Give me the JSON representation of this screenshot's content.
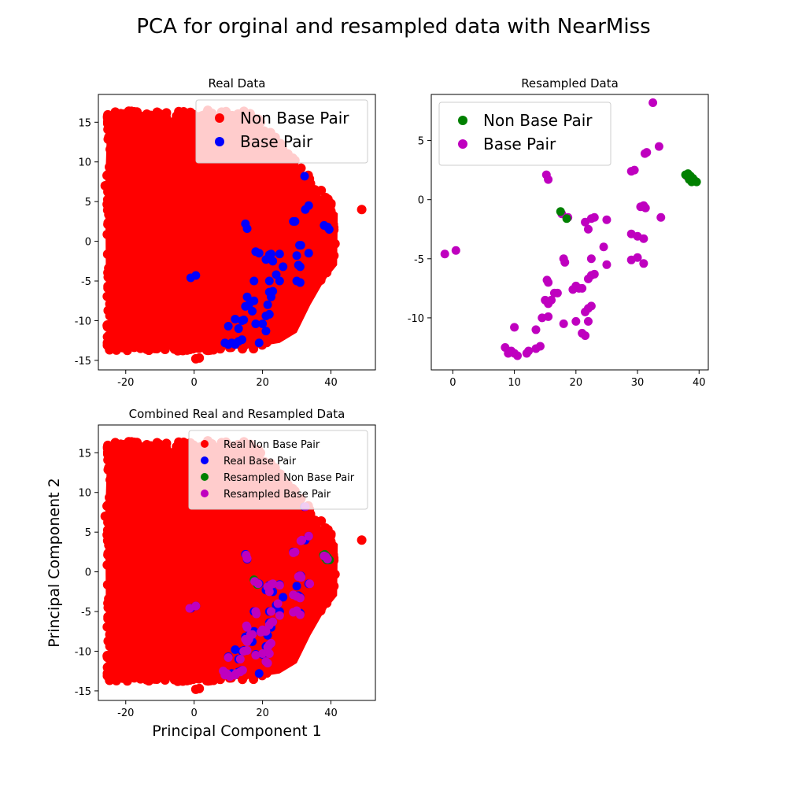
{
  "figure": {
    "title": "PCA for orginal and resampled data with NearMiss"
  },
  "colors": {
    "red": "#ff0000",
    "blue": "#0000ff",
    "green": "#008000",
    "magenta": "#bf00bf"
  },
  "chart_data": [
    {
      "type": "scatter",
      "title": "Real Data",
      "xlabel": "",
      "ylabel": "",
      "xlim": [
        -28,
        53
      ],
      "ylim": [
        -16.2,
        18.5
      ],
      "xticks": [
        "-20",
        "0",
        "20",
        "40"
      ],
      "xtick_values": [
        -20,
        0,
        20,
        40
      ],
      "yticks": [
        "15",
        "10",
        "5",
        "0",
        "-5",
        "-10",
        "-15"
      ],
      "ytick_values": [
        15,
        10,
        5,
        0,
        -5,
        -10,
        -15
      ],
      "legend_placement": "upper right",
      "legend_size": "large",
      "series": [
        {
          "name": "Non Base Pair",
          "color": "#ff0000",
          "region": "dense cluster spanning roughly x -26 to 42, y -14 to 16.5",
          "points": [
            [
              49,
              4
            ],
            [
              0.5,
              -14.8
            ],
            [
              1.5,
              -14.7
            ],
            [
              -26,
              7
            ],
            [
              4,
              16.5
            ],
            [
              -15,
              15
            ],
            [
              10,
              15.5
            ],
            [
              35,
              3.5
            ],
            [
              40,
              3.8
            ]
          ]
        },
        {
          "name": "Base Pair",
          "color": "#0000ff",
          "points": [
            [
              -1,
              -4.6
            ],
            [
              0.5,
              -4.3
            ],
            [
              9,
              -12.8
            ],
            [
              10,
              -13
            ],
            [
              11,
              -12.8
            ],
            [
              12,
              -13
            ],
            [
              13,
              -12.6
            ],
            [
              14,
              -12.4
            ],
            [
              10,
              -10.7
            ],
            [
              12,
              -9.8
            ],
            [
              13,
              -11
            ],
            [
              14,
              -10
            ],
            [
              14.5,
              -9.9
            ],
            [
              15,
              -8.2
            ],
            [
              15.5,
              -7
            ],
            [
              16,
              -8
            ],
            [
              17,
              -8.8
            ],
            [
              17.5,
              -7.5
            ],
            [
              18,
              -10.4
            ],
            [
              20,
              -10.4
            ],
            [
              21,
              -11.3
            ],
            [
              21.5,
              -8
            ],
            [
              21,
              -9.4
            ],
            [
              22,
              -9.2
            ],
            [
              22.5,
              -7
            ],
            [
              22,
              -6.4
            ],
            [
              23,
              -6.3
            ],
            [
              22,
              -5
            ],
            [
              24,
              -4.2
            ],
            [
              25,
              -5
            ],
            [
              26,
              -3.2
            ],
            [
              23,
              -2.5
            ],
            [
              22,
              -1.7
            ],
            [
              22.5,
              -1.6
            ],
            [
              21,
              -2.3
            ],
            [
              18,
              -1.3
            ],
            [
              19,
              -1.5
            ],
            [
              25,
              -1.6
            ],
            [
              17.5,
              -5
            ],
            [
              15,
              2.2
            ],
            [
              15.5,
              1.6
            ],
            [
              29,
              2.5
            ],
            [
              29.5,
              2.5
            ],
            [
              30.8,
              -0.5
            ],
            [
              31.2,
              -0.5
            ],
            [
              30,
              -1.8
            ],
            [
              30.5,
              -3
            ],
            [
              31,
              -3.2
            ],
            [
              32.5,
              4
            ],
            [
              33.5,
              4.5
            ],
            [
              32.3,
              8.2
            ],
            [
              30,
              -5
            ],
            [
              31,
              -5.2
            ],
            [
              38,
              2
            ],
            [
              39,
              1.8
            ],
            [
              39.5,
              1.5
            ],
            [
              33.5,
              -1.5
            ],
            [
              19,
              -12.8
            ]
          ]
        }
      ]
    },
    {
      "type": "scatter",
      "title": "Resampled Data",
      "xlabel": "",
      "ylabel": "",
      "xlim": [
        -3.5,
        41.5
      ],
      "ylim": [
        -14.4,
        8.9
      ],
      "xticks": [
        "0",
        "10",
        "20",
        "30",
        "40"
      ],
      "xtick_values": [
        0,
        10,
        20,
        30,
        40
      ],
      "yticks": [
        "5",
        "0",
        "-5",
        "-10"
      ],
      "ytick_values": [
        5,
        0,
        -5,
        -10
      ],
      "legend_placement": "upper left",
      "legend_size": "large",
      "series": [
        {
          "name": "Non Base Pair",
          "color": "#008000",
          "points": [
            [
              37.8,
              2.1
            ],
            [
              38.2,
              2.2
            ],
            [
              38.6,
              2.0
            ],
            [
              39.0,
              1.8
            ],
            [
              39.3,
              1.6
            ],
            [
              39.6,
              1.5
            ],
            [
              38.4,
              1.7
            ],
            [
              38.8,
              1.5
            ],
            [
              17.5,
              -1.0
            ],
            [
              18.5,
              -1.6
            ]
          ]
        },
        {
          "name": "Base Pair",
          "color": "#bf00bf",
          "points": [
            [
              -1.3,
              -4.6
            ],
            [
              0.5,
              -4.3
            ],
            [
              8.5,
              -12.5
            ],
            [
              9,
              -13
            ],
            [
              9.5,
              -12.8
            ],
            [
              10,
              -13
            ],
            [
              10.5,
              -13.2
            ],
            [
              12,
              -13
            ],
            [
              12.3,
              -12.8
            ],
            [
              13.5,
              -12.6
            ],
            [
              14.2,
              -12.4
            ],
            [
              10,
              -10.8
            ],
            [
              13.5,
              -11
            ],
            [
              14.5,
              -10
            ],
            [
              15.5,
              -9.9
            ],
            [
              15,
              -8.5
            ],
            [
              15.5,
              -8.8
            ],
            [
              16,
              -8.5
            ],
            [
              16.5,
              -7.9
            ],
            [
              17,
              -7.9
            ],
            [
              15.5,
              -7
            ],
            [
              15.3,
              -6.8
            ],
            [
              18,
              -10.5
            ],
            [
              20,
              -10.3
            ],
            [
              21,
              -11.3
            ],
            [
              21.5,
              -11.5
            ],
            [
              21.5,
              -9.5
            ],
            [
              22,
              -9.2
            ],
            [
              22.5,
              -9
            ],
            [
              22,
              -10.3
            ],
            [
              21,
              -7.5
            ],
            [
              20,
              -7.3
            ],
            [
              19.5,
              -7.6
            ],
            [
              20.5,
              -7.5
            ],
            [
              22,
              -6.7
            ],
            [
              22.5,
              -6.4
            ],
            [
              23,
              -6.3
            ],
            [
              22.5,
              -5
            ],
            [
              24.5,
              -4
            ],
            [
              25,
              -5.5
            ],
            [
              21.5,
              -1.9
            ],
            [
              22,
              -2.5
            ],
            [
              22.5,
              -1.6
            ],
            [
              23,
              -1.5
            ],
            [
              25,
              -1.7
            ],
            [
              18,
              -5.0
            ],
            [
              18.2,
              -5.3
            ],
            [
              15.2,
              2.1
            ],
            [
              15.5,
              1.7
            ],
            [
              17.7,
              -1.2
            ],
            [
              18.7,
              -1.5
            ],
            [
              29,
              2.4
            ],
            [
              29.5,
              2.5
            ],
            [
              30.5,
              -0.6
            ],
            [
              31,
              -0.5
            ],
            [
              31.3,
              -0.7
            ],
            [
              29,
              -2.9
            ],
            [
              30,
              -3.1
            ],
            [
              31,
              -3.3
            ],
            [
              29,
              -5.1
            ],
            [
              30,
              -4.9
            ],
            [
              31,
              -5.4
            ],
            [
              31.5,
              4
            ],
            [
              31.2,
              3.9
            ],
            [
              33.5,
              4.5
            ],
            [
              32.5,
              8.2
            ],
            [
              33.8,
              -1.5
            ],
            [
              38,
              2
            ],
            [
              38.5,
              1.9
            ],
            [
              39,
              1.6
            ]
          ]
        }
      ]
    },
    {
      "type": "scatter",
      "title": "Combined Real and Resampled Data",
      "xlabel": "Principal Component 1",
      "ylabel": "Principal Component 2",
      "xlim": [
        -28,
        53
      ],
      "ylim": [
        -16.2,
        18.5
      ],
      "xticks": [
        "-20",
        "0",
        "20",
        "40"
      ],
      "xtick_values": [
        -20,
        0,
        20,
        40
      ],
      "yticks": [
        "15",
        "10",
        "5",
        "0",
        "-5",
        "-10",
        "-15"
      ],
      "ytick_values": [
        15,
        10,
        5,
        0,
        -5,
        -10,
        -15
      ],
      "legend_placement": "upper right",
      "legend_size": "small",
      "series": [
        {
          "name": "Real Non Base Pair",
          "color": "#ff0000",
          "ref": "real-non-base"
        },
        {
          "name": "Real Base Pair",
          "color": "#0000ff",
          "ref": "real-base"
        },
        {
          "name": "Resampled Non Base Pair",
          "color": "#008000",
          "ref": "res-non-base"
        },
        {
          "name": "Resampled Base Pair",
          "color": "#bf00bf",
          "ref": "res-base"
        }
      ]
    }
  ]
}
